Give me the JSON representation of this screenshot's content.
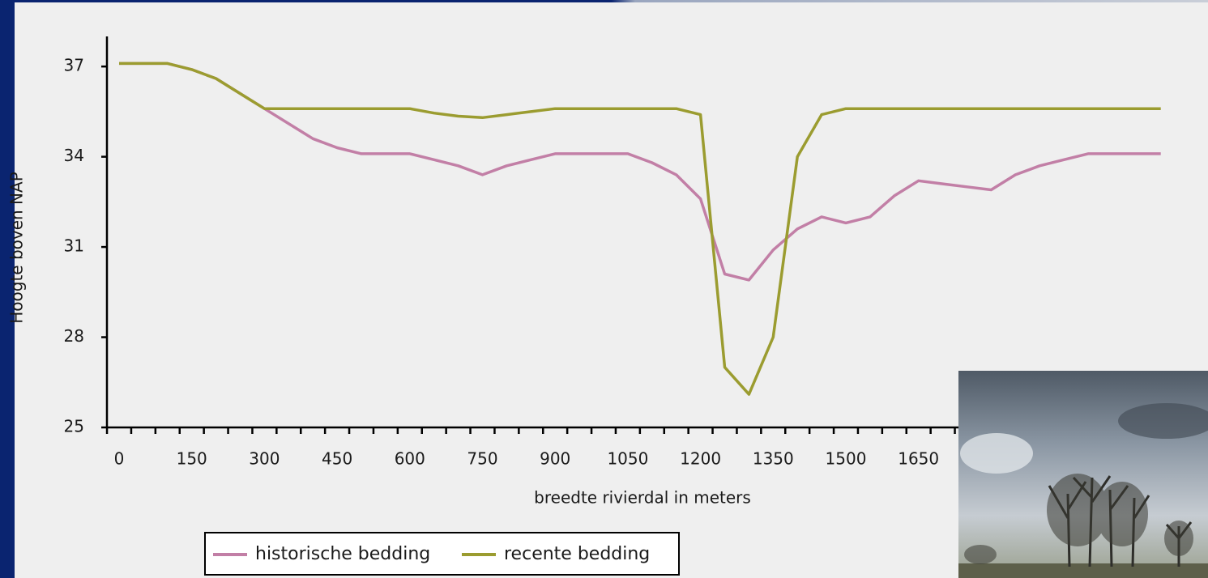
{
  "chart_data": {
    "type": "line",
    "y_label": "Hoogte boven NAP",
    "x_label": "breedte rivierdal in meters",
    "categories": [
      "0",
      null,
      null,
      "150",
      null,
      null,
      "300",
      null,
      null,
      "450",
      null,
      null,
      "600",
      null,
      null,
      "750",
      null,
      null,
      "900",
      null,
      null,
      "1050",
      null,
      null,
      "1200",
      null,
      null,
      "1350",
      null,
      null,
      "1500",
      null,
      null,
      "1650",
      null,
      null,
      null,
      null,
      null,
      null,
      null,
      null,
      null,
      null
    ],
    "series": [
      {
        "name": "historische bedding",
        "color": "#c27fa6",
        "values": [
          37.1,
          37.1,
          37.1,
          36.9,
          36.6,
          36.1,
          35.6,
          35.1,
          34.6,
          34.3,
          34.1,
          34.1,
          34.1,
          33.9,
          33.7,
          33.4,
          33.7,
          33.9,
          34.1,
          34.1,
          34.1,
          34.1,
          33.8,
          33.4,
          32.6,
          30.1,
          29.9,
          30.9,
          31.6,
          32.0,
          31.8,
          32.0,
          32.7,
          33.2,
          33.1,
          33.0,
          32.9,
          33.4,
          33.7,
          33.9,
          34.1,
          34.1,
          34.1,
          34.1
        ]
      },
      {
        "name": "recente bedding",
        "color": "#9b9c30",
        "values": [
          37.1,
          37.1,
          37.1,
          36.9,
          36.6,
          36.1,
          35.6,
          35.6,
          35.6,
          35.6,
          35.6,
          35.6,
          35.6,
          35.45,
          35.35,
          35.3,
          35.4,
          35.5,
          35.6,
          35.6,
          35.6,
          35.6,
          35.6,
          35.6,
          35.4,
          27,
          26.1,
          28,
          34,
          35.4,
          35.6,
          35.6,
          35.6,
          35.6,
          35.6,
          35.6,
          35.6,
          35.6,
          35.6,
          35.6,
          35.6,
          35.6,
          35.6,
          35.6
        ]
      }
    ],
    "ylim": [
      25,
      38
    ],
    "yticks": [
      25,
      28,
      31,
      34,
      37
    ],
    "grid": false
  }
}
